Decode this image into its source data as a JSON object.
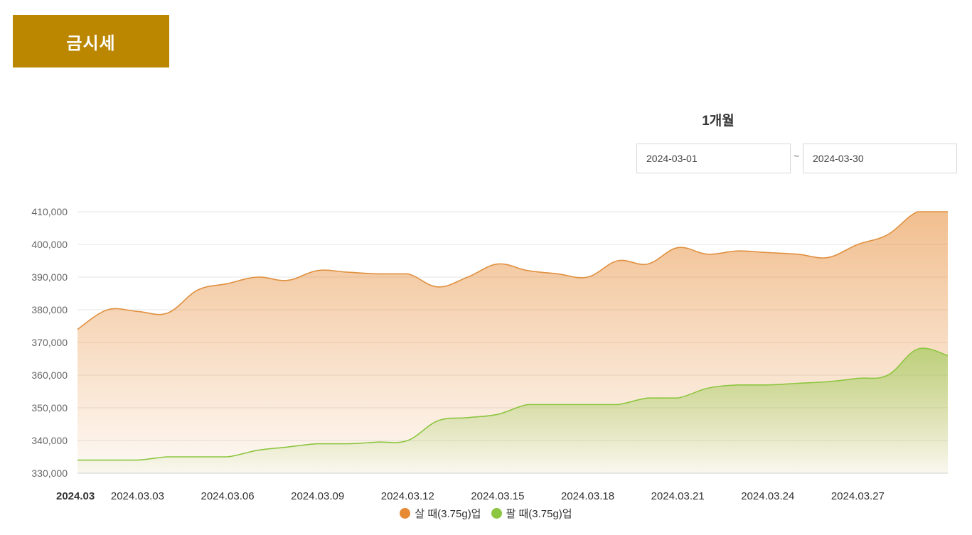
{
  "page": {
    "title": "금시세",
    "period_label": "1개월",
    "start_date": "2024-03-01",
    "end_date": "2024-03-30",
    "date_separator": "~"
  },
  "colors": {
    "accent": "#bb8700",
    "buy": "#e68a33",
    "sell": "#8dc640"
  },
  "chart_data": {
    "type": "area",
    "title": "",
    "xlabel": "",
    "ylabel": "",
    "ylim": [
      330000,
      410000
    ],
    "yticks": [
      330000,
      340000,
      350000,
      360000,
      370000,
      380000,
      390000,
      400000,
      410000
    ],
    "ytick_labels": [
      "330,000",
      "340,000",
      "350,000",
      "360,000",
      "370,000",
      "380,000",
      "390,000",
      "400,000",
      "410,000"
    ],
    "x": [
      "2024-03-01",
      "2024-03-02",
      "2024-03-03",
      "2024-03-04",
      "2024-03-05",
      "2024-03-06",
      "2024-03-07",
      "2024-03-08",
      "2024-03-09",
      "2024-03-10",
      "2024-03-11",
      "2024-03-12",
      "2024-03-13",
      "2024-03-14",
      "2024-03-15",
      "2024-03-16",
      "2024-03-17",
      "2024-03-18",
      "2024-03-19",
      "2024-03-20",
      "2024-03-21",
      "2024-03-22",
      "2024-03-23",
      "2024-03-24",
      "2024-03-25",
      "2024-03-26",
      "2024-03-27",
      "2024-03-28",
      "2024-03-29",
      "2024-03-30"
    ],
    "xticks": [
      {
        "date": "2024-03-01",
        "label": "2024.03",
        "bold": true
      },
      {
        "date": "2024-03-03",
        "label": "2024.03.03",
        "bold": false
      },
      {
        "date": "2024-03-06",
        "label": "2024.03.06",
        "bold": false
      },
      {
        "date": "2024-03-09",
        "label": "2024.03.09",
        "bold": false
      },
      {
        "date": "2024-03-12",
        "label": "2024.03.12",
        "bold": false
      },
      {
        "date": "2024-03-15",
        "label": "2024.03.15",
        "bold": false
      },
      {
        "date": "2024-03-18",
        "label": "2024.03.18",
        "bold": false
      },
      {
        "date": "2024-03-21",
        "label": "2024.03.21",
        "bold": false
      },
      {
        "date": "2024-03-24",
        "label": "2024.03.24",
        "bold": false
      },
      {
        "date": "2024-03-27",
        "label": "2024.03.27",
        "bold": false
      }
    ],
    "grid": true,
    "legend_position": "bottom",
    "series": [
      {
        "name": "살 때(3.75g)업",
        "color": "#e68a33",
        "values": [
          374000,
          380000,
          379500,
          379000,
          386000,
          388000,
          390000,
          389000,
          392000,
          391500,
          391000,
          391000,
          387000,
          390000,
          394000,
          392000,
          391000,
          390000,
          395000,
          394000,
          399000,
          397000,
          398000,
          397500,
          397000,
          396000,
          400000,
          403000,
          410000,
          410000
        ]
      },
      {
        "name": "팔 때(3.75g)업",
        "color": "#8dc640",
        "values": [
          334000,
          334000,
          334000,
          335000,
          335000,
          335000,
          337000,
          338000,
          339000,
          339000,
          339500,
          340000,
          346000,
          347000,
          348000,
          351000,
          351000,
          351000,
          351000,
          353000,
          353000,
          356000,
          357000,
          357000,
          357500,
          358000,
          359000,
          360000,
          368000,
          366000
        ]
      }
    ]
  }
}
